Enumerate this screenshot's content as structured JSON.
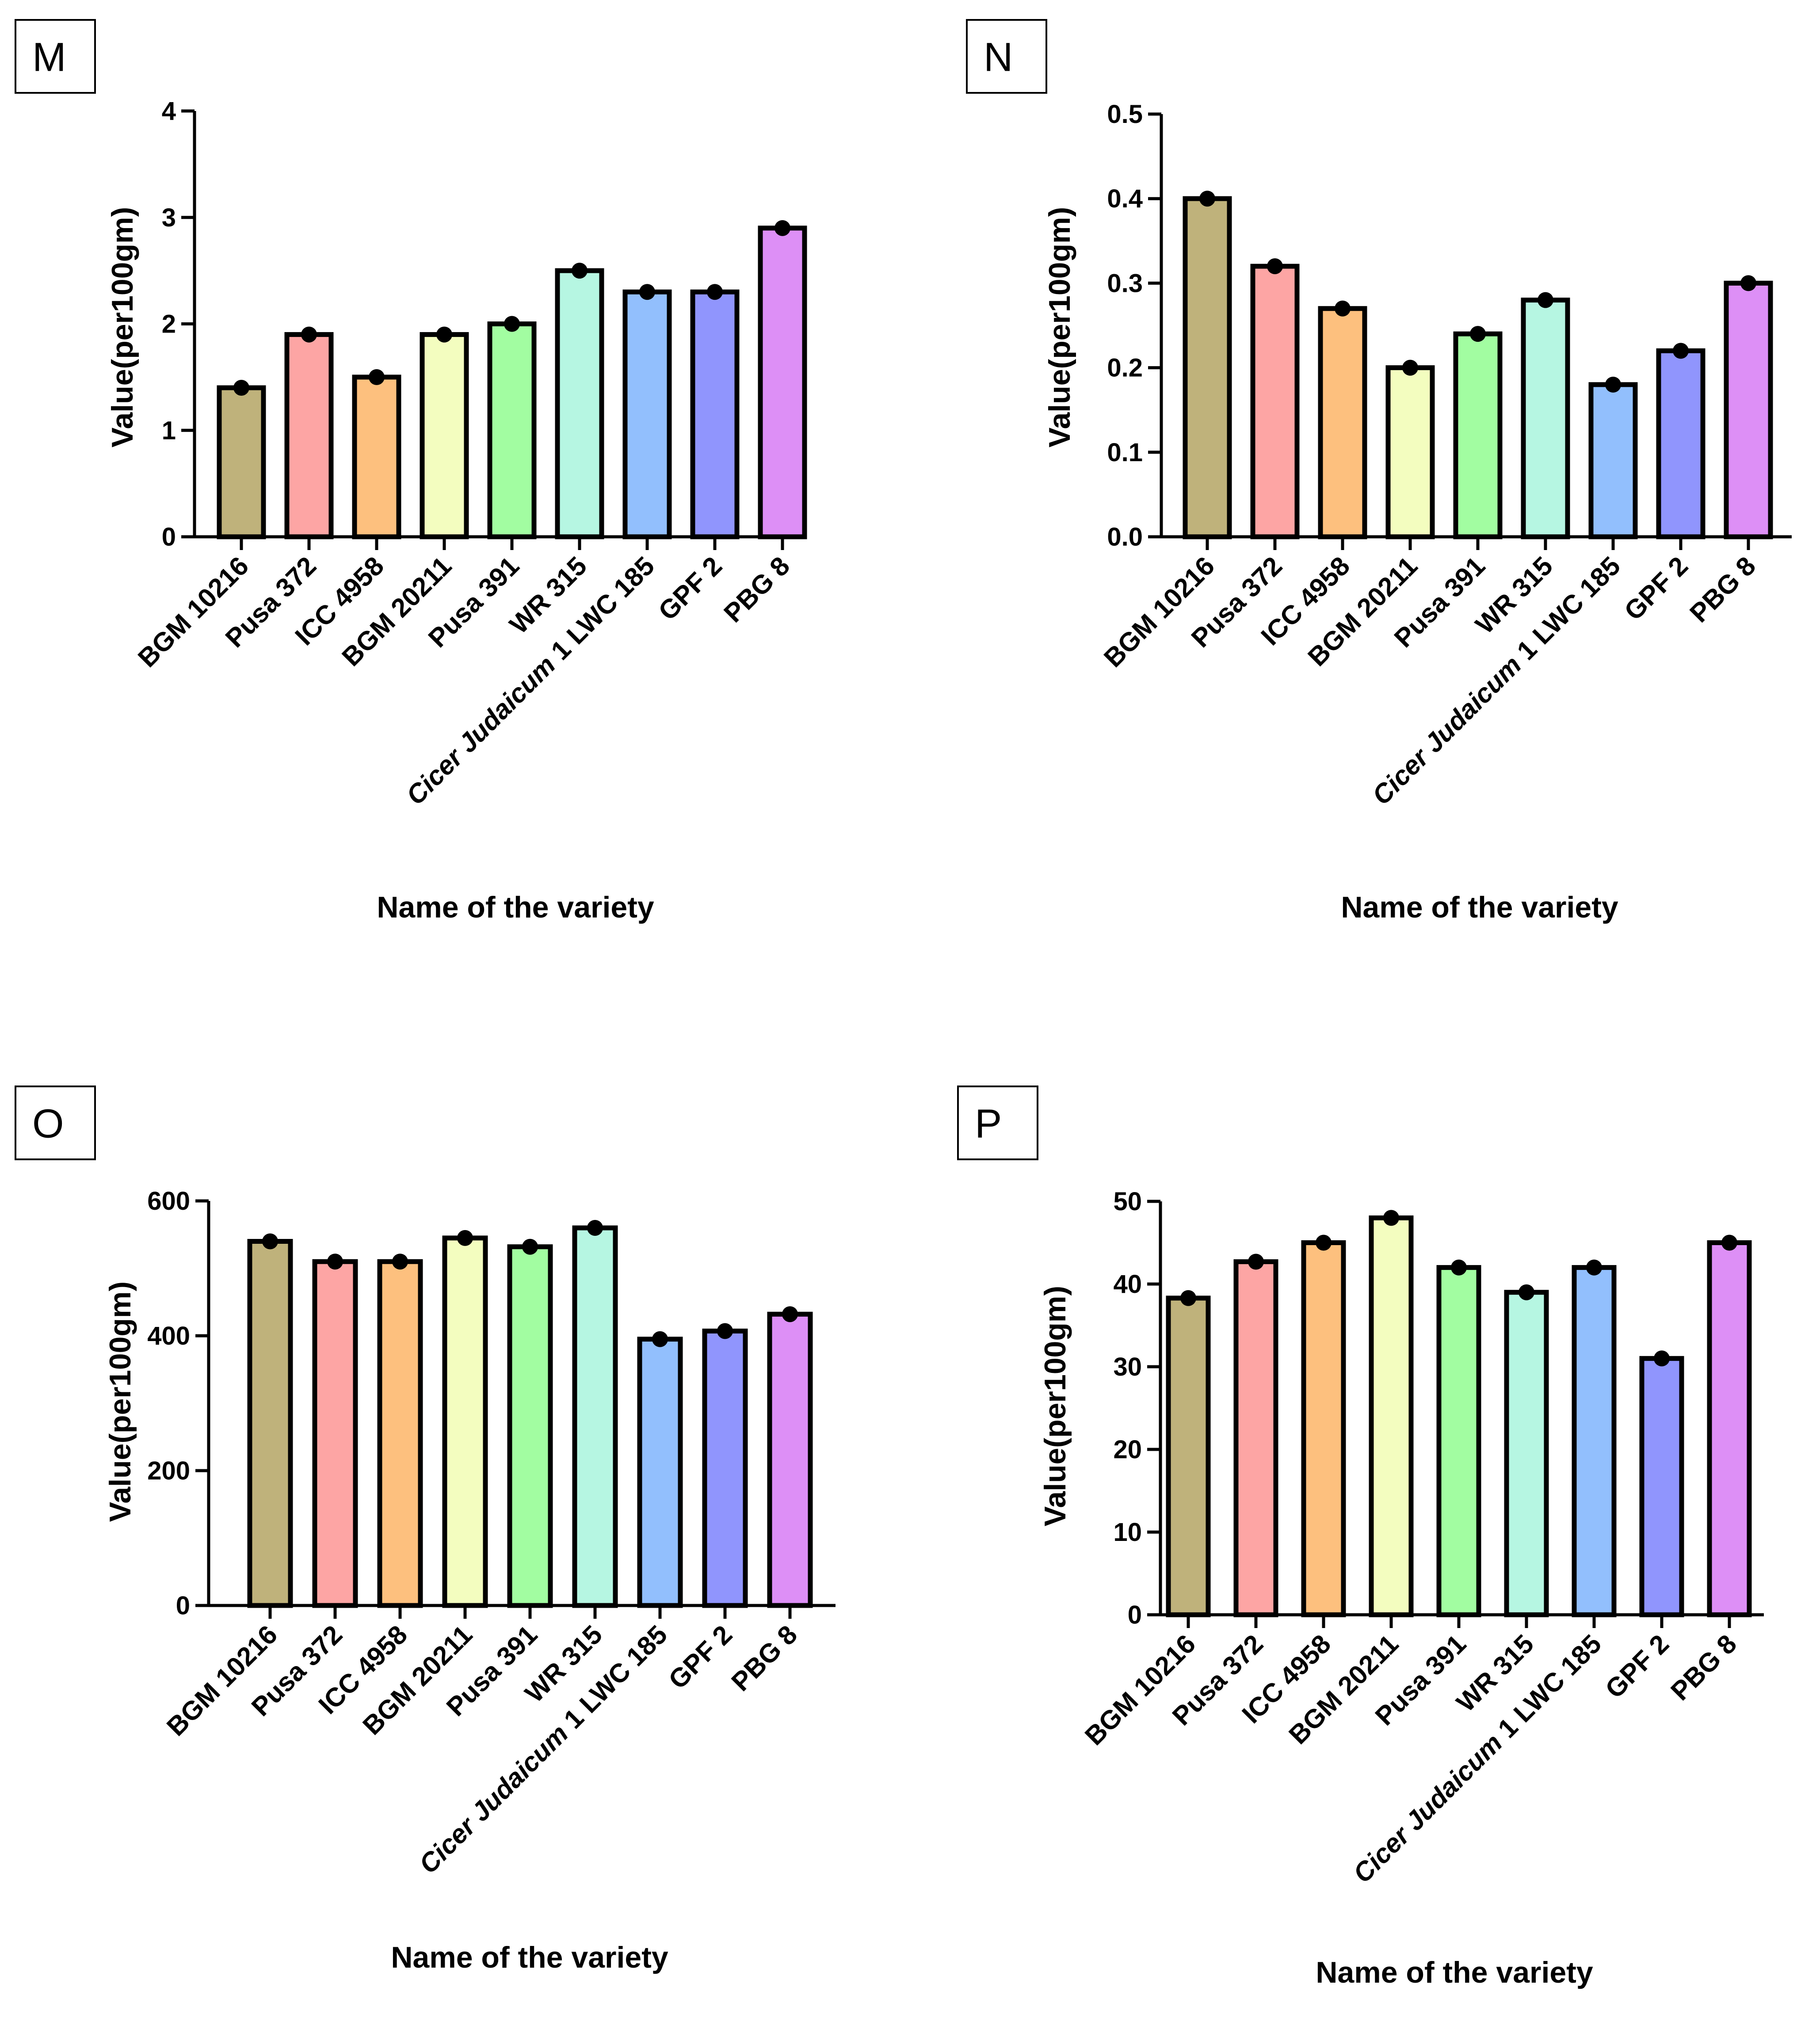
{
  "chart_data": [
    {
      "panel": "M",
      "type": "bar",
      "categories": [
        "BGM 10216",
        "Pusa 372",
        "ICC 4958",
        "BGM 20211",
        "Pusa 391",
        "WR 315",
        "Cicer Judaicum 1 LWC 185",
        "GPF 2",
        "PBG 8"
      ],
      "values": [
        1.4,
        1.9,
        1.5,
        1.9,
        2.0,
        2.5,
        2.3,
        2.3,
        2.9
      ],
      "ylim": [
        0,
        4
      ],
      "yticks": [
        "0",
        "1",
        "2",
        "3",
        "4"
      ],
      "xlabel": "Name of the variety",
      "ylabel": "Value(per100gm)"
    },
    {
      "panel": "N",
      "type": "bar",
      "categories": [
        "BGM 10216",
        "Pusa 372",
        "ICC 4958",
        "BGM 20211",
        "Pusa 391",
        "WR 315",
        "Cicer Judaicum 1 LWC 185",
        "GPF 2",
        "PBG 8"
      ],
      "values": [
        0.4,
        0.32,
        0.27,
        0.2,
        0.24,
        0.28,
        0.18,
        0.22,
        0.3
      ],
      "ylim": [
        0,
        0.5
      ],
      "yticks": [
        "0.0",
        "0.1",
        "0.2",
        "0.3",
        "0.4",
        "0.5"
      ],
      "xlabel": "Name of the variety",
      "ylabel": "Value(per100gm)"
    },
    {
      "panel": "O",
      "type": "bar",
      "categories": [
        "BGM 10216",
        "Pusa 372",
        "ICC 4958",
        "BGM 20211",
        "Pusa 391",
        "WR 315",
        "Cicer Judaicum 1 LWC 185",
        "GPF 2",
        "PBG 8"
      ],
      "values": [
        540,
        510,
        510,
        545,
        532,
        560,
        395,
        407,
        432
      ],
      "ylim": [
        0,
        600
      ],
      "yticks": [
        "0",
        "200",
        "400",
        "600"
      ],
      "xlabel": "Name of the variety",
      "ylabel": "Value(per100gm)"
    },
    {
      "panel": "P",
      "type": "bar",
      "categories": [
        "BGM 10216",
        "Pusa 372",
        "ICC 4958",
        "BGM 20211",
        "Pusa 391",
        "WR 315",
        "Cicer Judaicum 1 LWC 185",
        "GPF 2",
        "PBG 8"
      ],
      "values": [
        38.3,
        42.7,
        45,
        48,
        42,
        39,
        42,
        31,
        45
      ],
      "ylim": [
        0,
        50
      ],
      "yticks": [
        "0",
        "10",
        "20",
        "30",
        "40",
        "50"
      ],
      "xlabel": "Name of the variety",
      "ylabel": "Value(per100gm)"
    }
  ],
  "bar_colors": [
    "#bfb27b",
    "#fda5a4",
    "#fdc07e",
    "#f3fdbf",
    "#a2fda1",
    "#b6f6e2",
    "#92bffd",
    "#9095fd",
    "#dd8ff6"
  ]
}
